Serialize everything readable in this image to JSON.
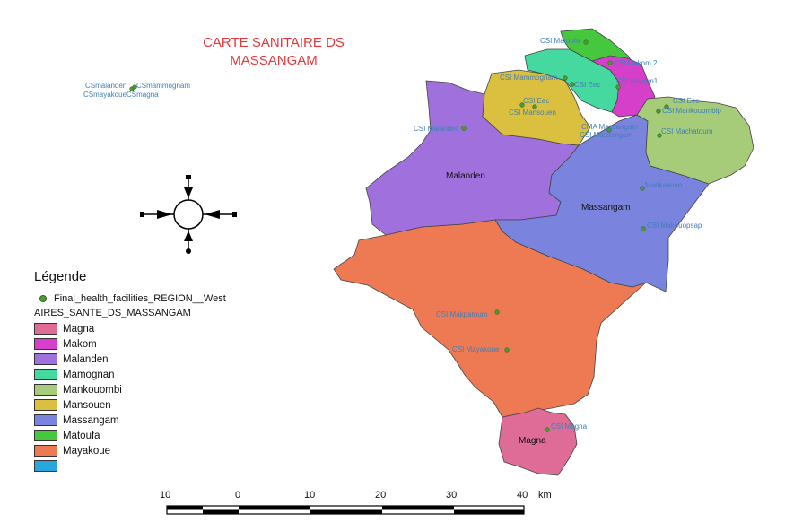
{
  "map": {
    "title_line1": "CARTE SANITAIRE DS",
    "title_line2": "MASSANGAM",
    "areas": {
      "magna": {
        "label": "Magna",
        "color": "#de6c97"
      },
      "makom": {
        "label": "",
        "color": "#d63fc9"
      },
      "malanden": {
        "label": "Malanden",
        "color": "#a070dc"
      },
      "mamognan": {
        "label": "",
        "color": "#45d9a0"
      },
      "mankouombi": {
        "label": "",
        "color": "#a6cc79"
      },
      "mansouen": {
        "label": "",
        "color": "#dbc040"
      },
      "massangam": {
        "label": "Massangam",
        "color": "#7a84de"
      },
      "matoufa": {
        "label": "",
        "color": "#46c83e"
      },
      "mayakoue": {
        "label": "",
        "color": "#ee7a54"
      }
    },
    "facility_labels": {
      "csmalanden": "CSmalanden",
      "csmammognam": "CSmammognam",
      "csmayakoue_magna": "CSmayakoueCSmagna",
      "csi_matoufa": "CSI Matoufa",
      "csi_makom2": "CSI Makom 2",
      "csi_mammognam": "CSI Mammognam",
      "csi_eec_1": "CSI Eec",
      "csi_makom1": "CSI Makom1",
      "csi_eec_2": "CSI Eec",
      "csi_mansouen": "CSI Mansouen",
      "csi_eec_3": "CSI Eec",
      "csi_mankouombi": "CSI Mankouombip",
      "csi_malanden": "CSI Malanden",
      "csi_massangam_a": "CMA Massangam",
      "csi_massangam_b": "CSI Massangam",
      "csi_machatoum": "CSI Machatoum",
      "mankakoun": "Mankakoun",
      "csi_makouopsap": "CSI Makouopsap",
      "csi_makpatoum": "CSI Makpatoum",
      "csi_mayakoue": "CSI Mayakoue",
      "csi_magna": "CSI Magna"
    },
    "colors": {
      "facility_point": "#4d9a35",
      "facility_label": "#3f7fb8",
      "title": "#e8363a"
    }
  },
  "legend": {
    "heading": "Légende",
    "point_layer": "Final_health_facilities_REGION__West",
    "polygon_layer": "AIRES_SANTE_DS_MASSANGAM",
    "items": [
      {
        "label": "Magna",
        "color": "#de6c97"
      },
      {
        "label": "Makom",
        "color": "#d63fc9"
      },
      {
        "label": "Malanden",
        "color": "#a070dc"
      },
      {
        "label": "Mamognan",
        "color": "#45d9a0"
      },
      {
        "label": "Mankouombi",
        "color": "#a6cc79"
      },
      {
        "label": "Mansouen",
        "color": "#dbc040"
      },
      {
        "label": "Massangam",
        "color": "#7a84de"
      },
      {
        "label": "Matoufa",
        "color": "#46c83e"
      },
      {
        "label": "Mayakoue",
        "color": "#ee7a54"
      },
      {
        "label": "",
        "color": "#29a8e0"
      }
    ]
  },
  "scale_bar": {
    "ticks": [
      "10",
      "0",
      "10",
      "20",
      "30",
      "40"
    ],
    "unit": "km"
  },
  "north_arrow": {
    "icon": "compass-rose-icon"
  }
}
